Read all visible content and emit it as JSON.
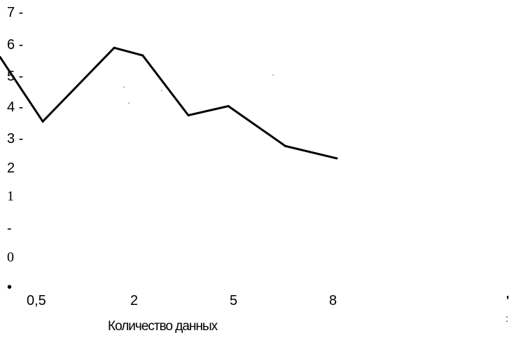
{
  "chart_data": {
    "type": "line",
    "title": "",
    "xlabel": "Количество данных",
    "ylabel": "",
    "ylim": [
      0,
      7
    ],
    "grid": false,
    "y_tick_labels": [
      "7 -",
      "6 -",
      "5 -",
      "4 -",
      "3 -",
      "2",
      "1",
      "-",
      "0",
      "•"
    ],
    "x_tick_labels": [
      "0,5",
      "2",
      "5",
      "8"
    ],
    "series": [
      {
        "x": [
          0.5,
          1.25,
          2.5,
          3.0,
          3.8,
          4.5,
          5.5,
          6.4
        ],
        "y": [
          5.6,
          3.5,
          5.9,
          5.65,
          3.7,
          4.0,
          2.7,
          2.3
        ]
      }
    ],
    "line_color": "#000000"
  },
  "stray_marks": [
    "'",
    ":"
  ]
}
